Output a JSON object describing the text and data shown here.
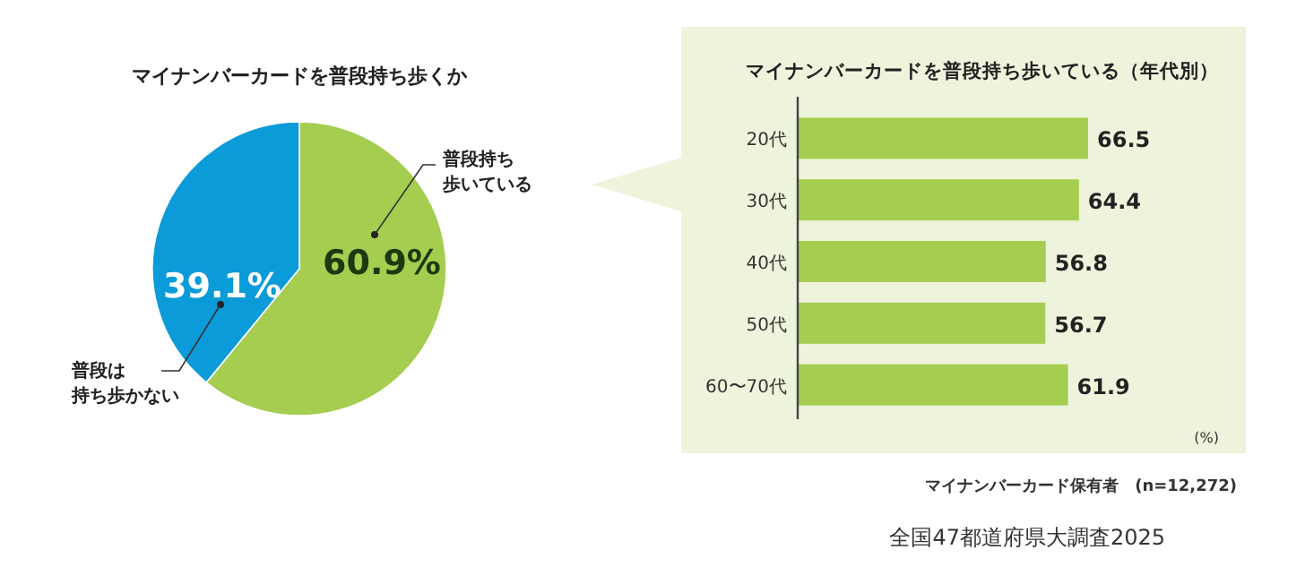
{
  "chart_data": [
    {
      "type": "pie",
      "title": "マイナンバーカードを普段持ち歩くか",
      "categories": [
        "普段持ち歩いている",
        "普段は持ち歩かない"
      ],
      "values": [
        60.9,
        39.1
      ],
      "colors": [
        "#a5cd50",
        "#0b9bd9"
      ],
      "value_labels": [
        "60.9%",
        "39.1%"
      ]
    },
    {
      "type": "bar",
      "orientation": "horizontal",
      "title": "マイナンバーカードを普段持ち歩いている（年代別）",
      "categories": [
        "20代",
        "30代",
        "40代",
        "50代",
        "60〜70代"
      ],
      "values": [
        66.5,
        64.4,
        56.8,
        56.7,
        61.9
      ],
      "color": "#a5cd50",
      "data_labels": true,
      "annotations": [
        "(%)",
        "マイナンバーカード保有者　(n=12,272)",
        "全国47都道府県大調査2025"
      ]
    }
  ]
}
